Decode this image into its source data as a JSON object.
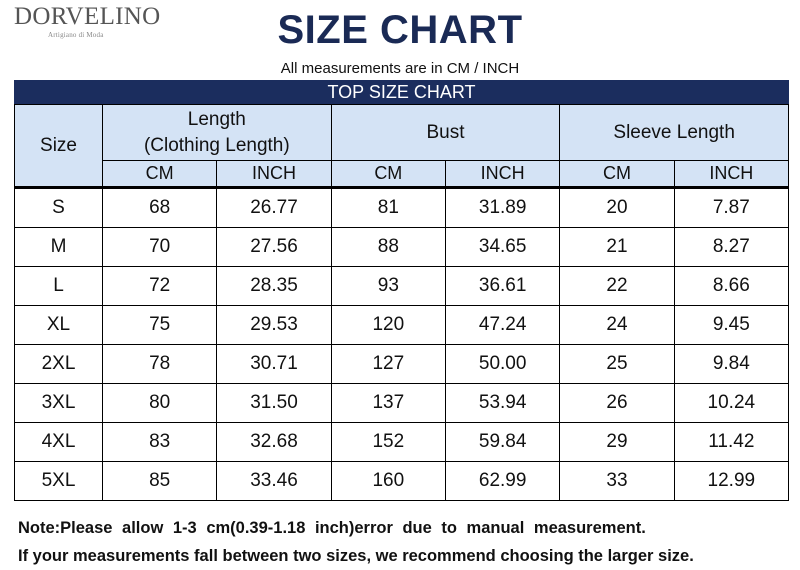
{
  "brand": {
    "name": "DORVELINO",
    "tagline": "Artigiano di Moda"
  },
  "title": "SIZE CHART",
  "subtitle": "All measurements are in CM / INCH",
  "banner": "TOP SIZE CHART",
  "table": {
    "size_header": "Size",
    "groups": [
      {
        "label": "Length\n(Clothing Length)",
        "line1": "Length",
        "line2": "(Clothing Length)"
      },
      {
        "label": "Bust"
      },
      {
        "label": "Sleeve Length"
      }
    ],
    "units": [
      "CM",
      "INCH",
      "CM",
      "INCH",
      "CM",
      "INCH"
    ],
    "rows": [
      {
        "size": "S",
        "values": [
          "68",
          "26.77",
          "81",
          "31.89",
          "20",
          "7.87"
        ]
      },
      {
        "size": "M",
        "values": [
          "70",
          "27.56",
          "88",
          "34.65",
          "21",
          "8.27"
        ]
      },
      {
        "size": "L",
        "values": [
          "72",
          "28.35",
          "93",
          "36.61",
          "22",
          "8.66"
        ]
      },
      {
        "size": "XL",
        "values": [
          "75",
          "29.53",
          "120",
          "47.24",
          "24",
          "9.45"
        ]
      },
      {
        "size": "2XL",
        "values": [
          "78",
          "30.71",
          "127",
          "50.00",
          "25",
          "9.84"
        ]
      },
      {
        "size": "3XL",
        "values": [
          "80",
          "31.50",
          "137",
          "53.94",
          "26",
          "10.24"
        ]
      },
      {
        "size": "4XL",
        "values": [
          "83",
          "32.68",
          "152",
          "59.84",
          "29",
          "11.42"
        ]
      },
      {
        "size": "5XL",
        "values": [
          "85",
          "33.46",
          "160",
          "62.99",
          "33",
          "12.99"
        ]
      }
    ]
  },
  "notes": [
    "Note:Please allow 1-3 cm(0.39-1.18 inch)error due to manual measurement.",
    "If your measurements fall between two sizes, we recommend choosing the larger size."
  ],
  "colors": {
    "title": "#1a2a55",
    "banner_bg": "#1b2d5e",
    "banner_text": "#ffffff",
    "header_bg": "#d4e3f5",
    "grid": "#000000"
  }
}
